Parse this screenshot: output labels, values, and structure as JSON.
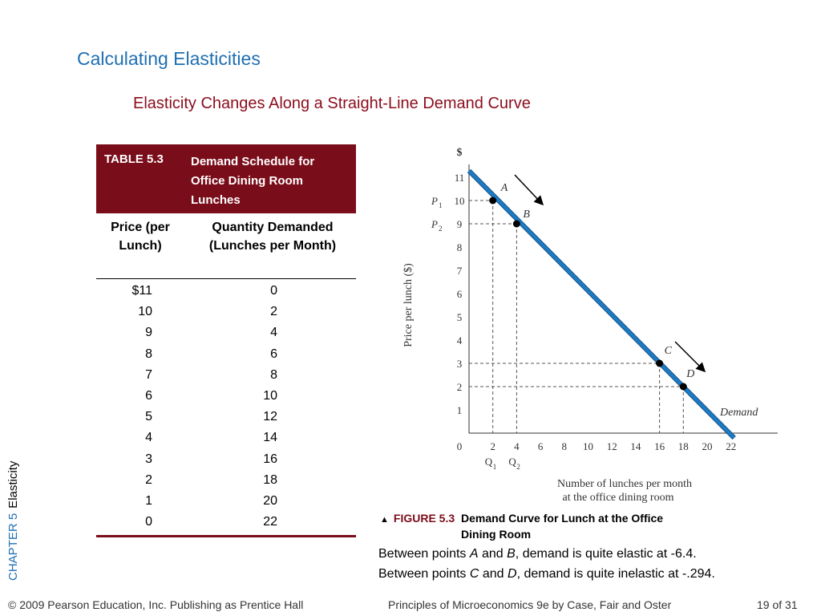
{
  "slide": {
    "title": "Calculating Elasticities",
    "subtitle": "Elasticity Changes Along a Straight-Line Demand Curve",
    "sidebar_chapter": "CHAPTER 5",
    "sidebar_topic": "Elasticity"
  },
  "table": {
    "number": "TABLE 5.3",
    "caption": "Demand Schedule for Office Dining Room Lunches",
    "col_price_header": "Price (per Lunch)",
    "col_qty_header": "Quantity Demanded (Lunches per Month)",
    "rows": [
      {
        "price": "$11",
        "qty": "0"
      },
      {
        "price": "10",
        "qty": "2"
      },
      {
        "price": "9",
        "qty": "4"
      },
      {
        "price": "8",
        "qty": "6"
      },
      {
        "price": "7",
        "qty": "8"
      },
      {
        "price": "6",
        "qty": "10"
      },
      {
        "price": "5",
        "qty": "12"
      },
      {
        "price": "4",
        "qty": "14"
      },
      {
        "price": "3",
        "qty": "16"
      },
      {
        "price": "2",
        "qty": "18"
      },
      {
        "price": "1",
        "qty": "20"
      },
      {
        "price": "0",
        "qty": "22"
      }
    ]
  },
  "figure": {
    "number": "FIGURE 5.3",
    "caption": "Demand Curve for Lunch at the Office Dining Room"
  },
  "notes": {
    "ab_prefix": "Between points ",
    "ab_p1": "A",
    "ab_and": " and ",
    "ab_p2": "B",
    "ab_text": ", demand is quite elastic at -6.4.",
    "cd_prefix": "Between points ",
    "cd_p1": "C",
    "cd_and": " and ",
    "cd_p2": "D",
    "cd_text": ", demand is quite inelastic at  -.294."
  },
  "footer": {
    "copyright": "© 2009 Pearson Education, Inc. Publishing as Prentice Hall",
    "book": "Principles of Microeconomics 9e by Case, Fair and Oster",
    "page": "19 of 31"
  },
  "colors": {
    "title": "#1f6fb2",
    "subtitle": "#8b0d1d",
    "table_header": "#7a0d1a",
    "demand_line": "#1a7cc4"
  },
  "chart_data": {
    "type": "line",
    "ylabel": "Price per lunch ($)",
    "y_unit_label": "$",
    "xlabel": "Number of lunches per month at the office dining room",
    "xlim": [
      0,
      22
    ],
    "ylim": [
      0,
      11
    ],
    "xticks": [
      0,
      2,
      4,
      6,
      8,
      10,
      12,
      14,
      16,
      18,
      20,
      22
    ],
    "yticks": [
      1,
      2,
      3,
      4,
      5,
      6,
      7,
      8,
      9,
      10,
      11
    ],
    "grid": false,
    "series": [
      {
        "name": "Demand",
        "x": [
          0,
          22
        ],
        "y": [
          11,
          0
        ]
      }
    ],
    "points": [
      {
        "label": "A",
        "x": 2,
        "y": 10
      },
      {
        "label": "B",
        "x": 4,
        "y": 9
      },
      {
        "label": "C",
        "x": 16,
        "y": 3
      },
      {
        "label": "D",
        "x": 18,
        "y": 2
      }
    ],
    "axis_marks": {
      "P1": 10,
      "P2": 9,
      "Q1": 2,
      "Q2": 4
    }
  }
}
